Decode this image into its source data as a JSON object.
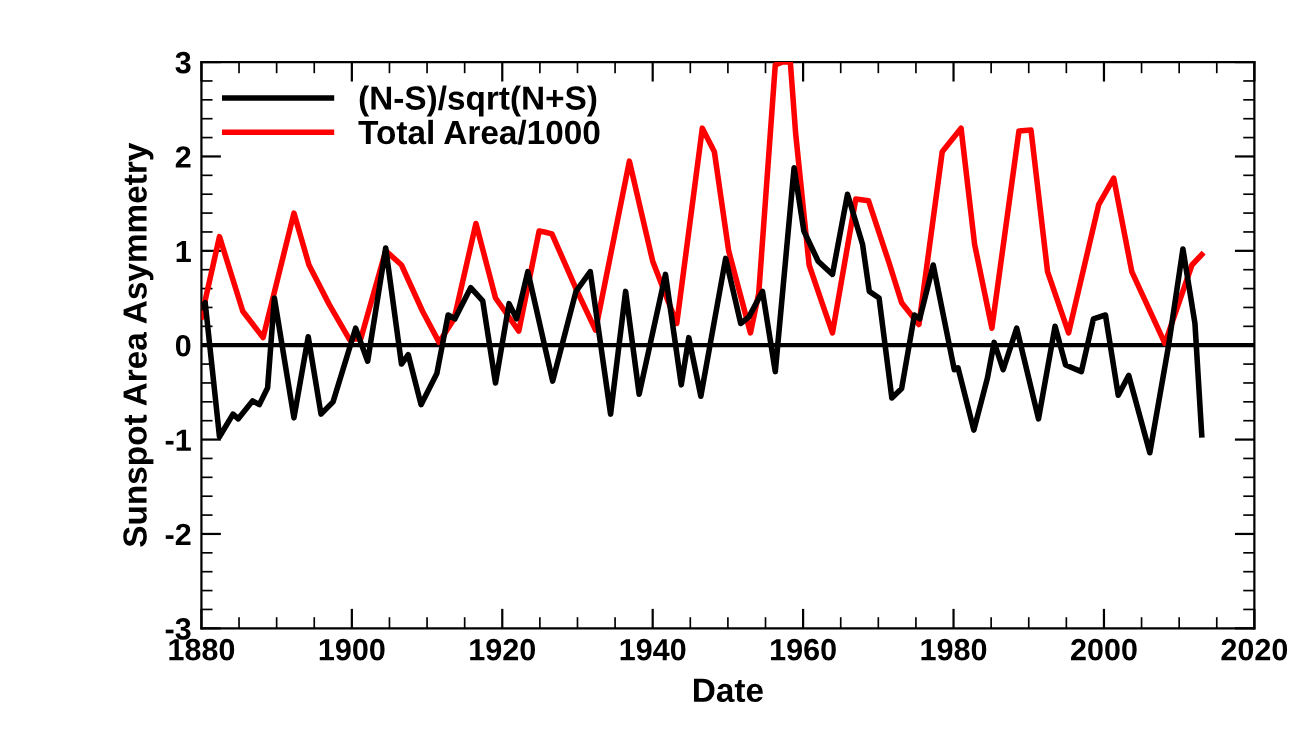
{
  "chart_data": {
    "type": "line",
    "xlabel": "Date",
    "ylabel": "Sunspot Area Asymmetry",
    "xlim": [
      1880,
      2020
    ],
    "xticks": [
      1880,
      1900,
      1920,
      1940,
      1960,
      1980,
      2000,
      2020
    ],
    "ylim": [
      -3,
      3
    ],
    "yticks": [
      -3,
      -2,
      -1,
      0,
      1,
      2,
      3
    ],
    "grid": false,
    "legend": "top left",
    "marker": "none",
    "line_style": "solid",
    "ref_lines": [
      {
        "axis": "y",
        "value": 0,
        "color": "#000000"
      }
    ],
    "series": [
      {
        "name": "(N-S)/sqrt(N+S)",
        "color": "#000000",
        "x": [
          1880,
          1880.5,
          1882.4,
          1884.2,
          1884.9,
          1886.8,
          1887.7,
          1888.8,
          1889.7,
          1892.3,
          1894.2,
          1895.9,
          1897.5,
          1900.5,
          1902.1,
          1904.5,
          1906.6,
          1907.5,
          1909.2,
          1911.3,
          1912.8,
          1913.7,
          1915.8,
          1917.4,
          1919.1,
          1920.9,
          1921.9,
          1923.4,
          1926.7,
          1929.8,
          1931.7,
          1934.4,
          1936.4,
          1938.2,
          1941.7,
          1943.8,
          1944.8,
          1946.4,
          1949.7,
          1951.7,
          1952.8,
          1954.6,
          1956.3,
          1958.8,
          1960.1,
          1962.0,
          1963.9,
          1965.9,
          1967.9,
          1968.8,
          1970.1,
          1971.8,
          1973.1,
          1974.8,
          1975.5,
          1977.3,
          1980.1,
          1980.6,
          1982.7,
          1984.5,
          1985.4,
          1986.6,
          1988.4,
          1991.3,
          1993.5,
          1994.9,
          1997.0,
          1998.6,
          2000.2,
          2001.9,
          2003.3,
          2006.1,
          2008.6,
          2010.5,
          2012.1,
          2013.0
        ],
        "values": [
          0.4,
          0.45,
          -0.97,
          -0.73,
          -0.78,
          -0.59,
          -0.63,
          -0.45,
          0.5,
          -0.77,
          0.09,
          -0.73,
          -0.6,
          0.18,
          -0.17,
          1.03,
          -0.2,
          -0.1,
          -0.63,
          -0.3,
          0.32,
          0.28,
          0.61,
          0.47,
          -0.4,
          0.44,
          0.28,
          0.78,
          -0.38,
          0.57,
          0.78,
          -0.73,
          0.57,
          -0.52,
          0.75,
          -0.42,
          0.08,
          -0.54,
          0.92,
          0.23,
          0.3,
          0.57,
          -0.28,
          1.88,
          1.21,
          0.89,
          0.75,
          1.6,
          1.07,
          0.57,
          0.5,
          -0.56,
          -0.46,
          0.32,
          0.28,
          0.85,
          -0.26,
          -0.24,
          -0.9,
          -0.35,
          0.03,
          -0.26,
          0.18,
          -0.78,
          0.2,
          -0.21,
          -0.28,
          0.28,
          0.32,
          -0.53,
          -0.32,
          -1.14,
          0.0,
          1.02,
          0.23,
          -0.95
        ]
      },
      {
        "name": "Total Area/1000",
        "color": "#ff0000",
        "x": [
          1880,
          1882.4,
          1885.5,
          1888.2,
          1892.3,
          1894.3,
          1897.0,
          1899.7,
          1901.2,
          1904.5,
          1906.6,
          1909.4,
          1911.6,
          1913.6,
          1916.5,
          1919.1,
          1922.2,
          1924.9,
          1925.6,
          1926.6,
          1929.8,
          1932.4,
          1936.9,
          1940.0,
          1943.2,
          1946.6,
          1948.2,
          1950.1,
          1953.0,
          1954.1,
          1956.3,
          1957.2,
          1958.3,
          1959.0,
          1960.8,
          1962.6,
          1963.9,
          1967.0,
          1968.7,
          1971.4,
          1973.1,
          1975.4,
          1978.5,
          1981.0,
          1982.8,
          1985.1,
          1988.7,
          1990.3,
          1992.5,
          1995.3,
          1999.3,
          2001.3,
          2003.7,
          2008.1,
          2011.7,
          2013.0
        ],
        "values": [
          0.3,
          1.15,
          0.36,
          0.08,
          1.4,
          0.85,
          0.43,
          0.06,
          0.07,
          1.0,
          0.85,
          0.36,
          0.03,
          0.28,
          1.29,
          0.5,
          0.15,
          1.21,
          1.2,
          1.18,
          0.6,
          0.16,
          1.95,
          0.89,
          0.23,
          2.3,
          2.05,
          1.0,
          0.13,
          0.55,
          2.97,
          3.0,
          3.0,
          2.25,
          0.85,
          0.43,
          0.13,
          1.55,
          1.53,
          0.88,
          0.45,
          0.22,
          2.05,
          2.3,
          1.07,
          0.18,
          2.27,
          2.28,
          0.78,
          0.13,
          1.49,
          1.77,
          0.78,
          0.02,
          0.85,
          0.96
        ]
      }
    ]
  }
}
